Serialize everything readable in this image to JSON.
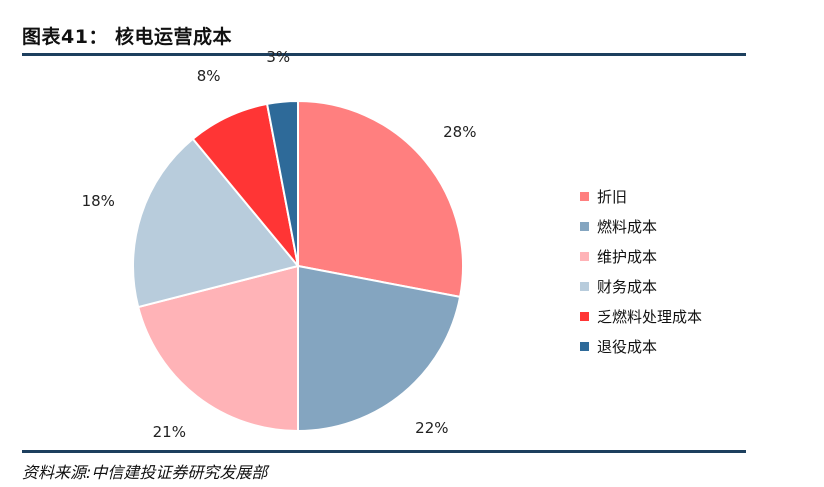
{
  "figure": {
    "title": "图表41： 核电运营成本",
    "source": "资料来源:中信建投证券研究发展部"
  },
  "chart_data": {
    "type": "pie",
    "title": "",
    "categories": [
      "折旧",
      "燃料成本",
      "维护成本",
      "财务成本",
      "乏燃料处理成本",
      "退役成本"
    ],
    "values": [
      28,
      22,
      21,
      18,
      8,
      3
    ],
    "value_labels": [
      "28%",
      "22%",
      "21%",
      "18%",
      "8%",
      "3%"
    ],
    "colors": [
      "#ff7f7f",
      "#84a5c0",
      "#ffb3b7",
      "#b8ccdc",
      "#ff3535",
      "#2e6a99"
    ],
    "start": "12 o'clock, clockwise",
    "legend_position": "right"
  }
}
